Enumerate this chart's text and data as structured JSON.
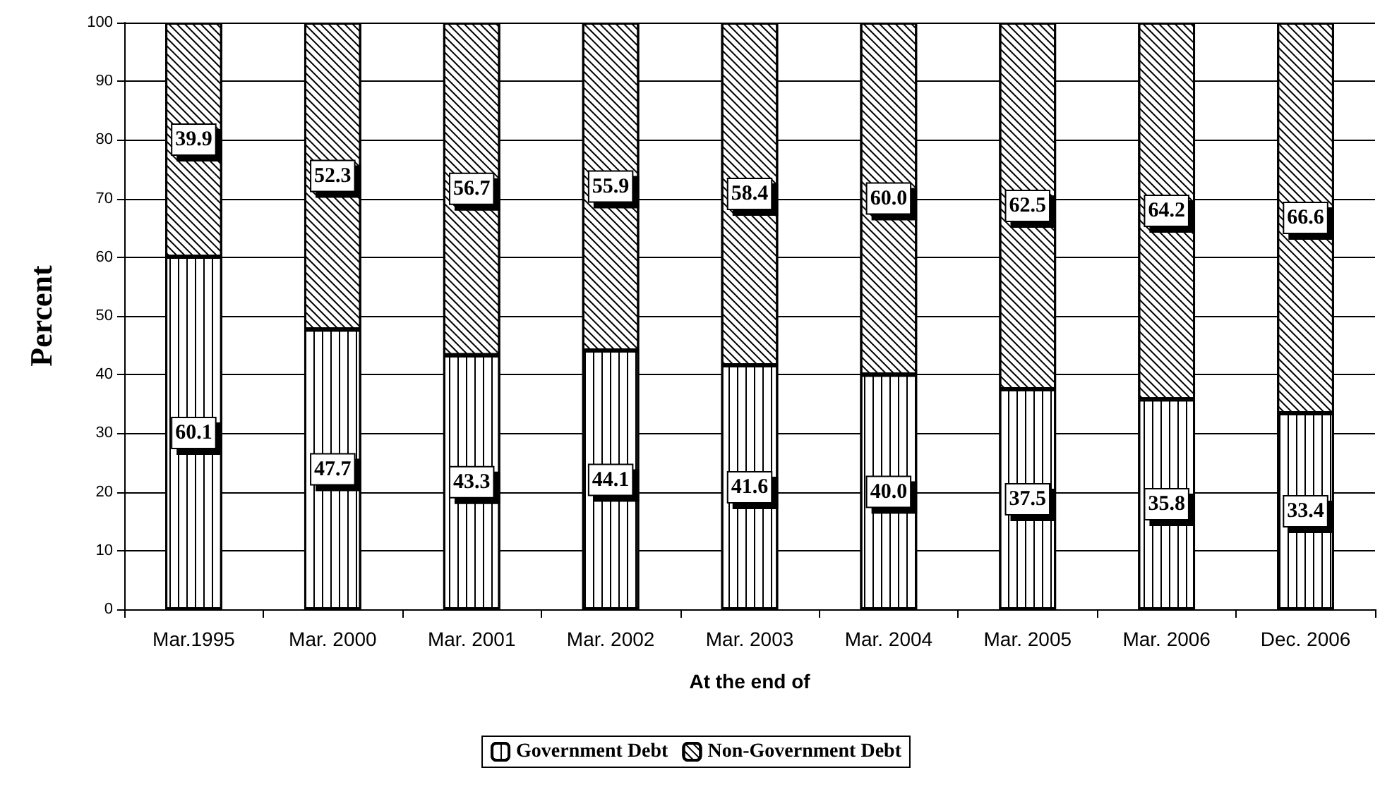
{
  "chart_data": {
    "type": "bar",
    "stacked": true,
    "xlabel": "At the end of",
    "ylabel": "Percent",
    "categories": [
      "Mar.1995",
      "Mar. 2000",
      "Mar. 2001",
      "Mar. 2002",
      "Mar. 2003",
      "Mar. 2004",
      "Mar. 2005",
      "Mar. 2006",
      "Dec. 2006"
    ],
    "series": [
      {
        "name": "Government Debt",
        "color": "#ffffff",
        "values": [
          60.1,
          47.7,
          43.3,
          44.1,
          41.6,
          40.0,
          37.5,
          35.8,
          33.4
        ],
        "value_labels": [
          "60.1",
          "47.7",
          "43.3",
          "44.1",
          "41.6",
          "40.0",
          "37.5",
          "35.8",
          "33.4"
        ]
      },
      {
        "name": "Non-Government Debt",
        "color": "#ffffff",
        "values": [
          39.9,
          52.3,
          56.7,
          55.9,
          58.4,
          60.0,
          62.5,
          64.2,
          66.6
        ],
        "value_labels": [
          "39.9",
          "52.3",
          "56.7",
          "55.9",
          "58.4",
          "60.0",
          "62.5",
          "64.2",
          "66.6"
        ]
      }
    ],
    "ylim": [
      0,
      100
    ],
    "yticks": [
      0,
      10,
      20,
      30,
      40,
      50,
      60,
      70,
      80,
      90,
      100
    ],
    "grid": "y",
    "legend": "bottom"
  }
}
